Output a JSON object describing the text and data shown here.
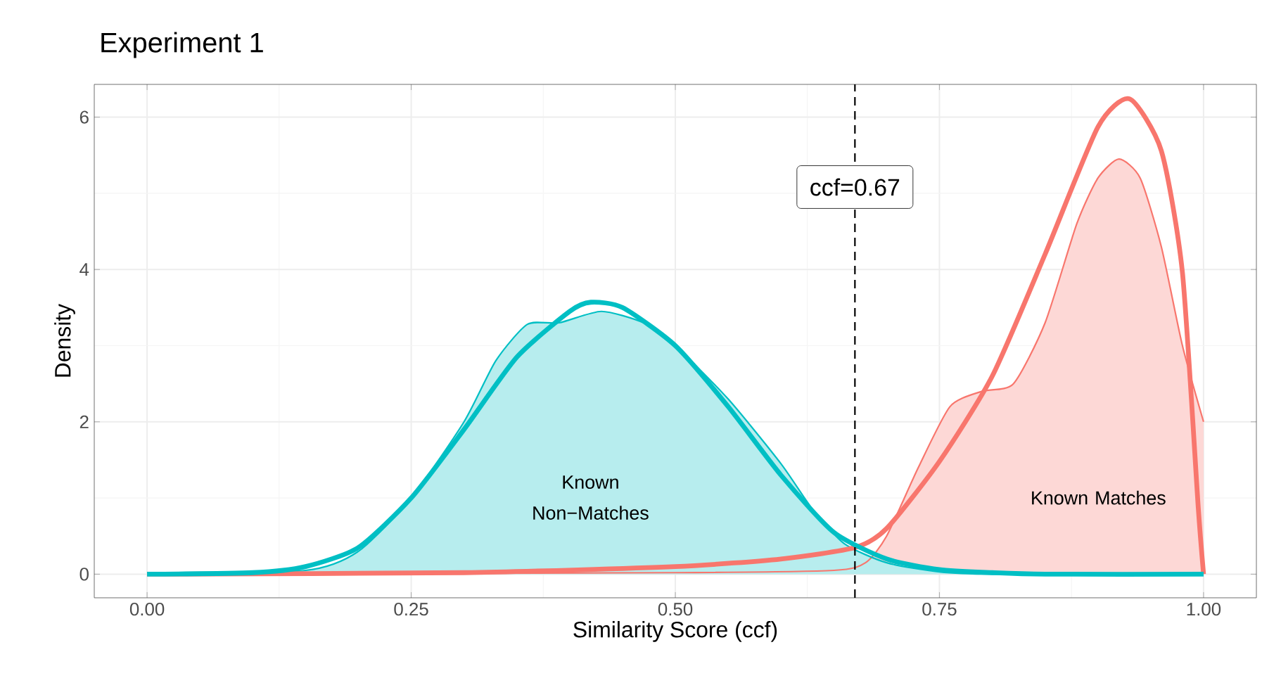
{
  "chart_data": {
    "type": "line",
    "title": "Experiment 1",
    "xlabel": "Similarity Score (ccf)",
    "ylabel": "Density",
    "xlim": [
      -0.05,
      1.05
    ],
    "ylim": [
      -0.31,
      6.43
    ],
    "xticks": [
      {
        "value": 0,
        "label": "0.00"
      },
      {
        "value": 0.25,
        "label": "0.25"
      },
      {
        "value": 0.5,
        "label": "0.50"
      },
      {
        "value": 0.75,
        "label": "0.75"
      },
      {
        "value": 1,
        "label": "1.00"
      }
    ],
    "yticks": [
      0,
      2,
      4,
      6
    ],
    "grid": true,
    "series": [
      {
        "type": "area",
        "color": "#f8766d",
        "x": [
          0,
          0.5,
          0.65,
          0.68,
          0.7,
          0.73,
          0.76,
          0.79,
          0.82,
          0.85,
          0.88,
          0.9,
          0.92,
          0.94,
          0.96,
          0.98,
          1.0
        ],
        "values": [
          0,
          0.02,
          0.05,
          0.15,
          0.5,
          1.4,
          2.2,
          2.4,
          2.5,
          3.3,
          4.6,
          5.2,
          5.45,
          5.2,
          4.3,
          3.0,
          2.0
        ]
      },
      {
        "type": "area",
        "color": "#00bfc4",
        "x": [
          0,
          0.15,
          0.2,
          0.25,
          0.3,
          0.33,
          0.36,
          0.39,
          0.43,
          0.47,
          0.5,
          0.55,
          0.6,
          0.63,
          0.66,
          0.7,
          0.75,
          0.8,
          1.0
        ],
        "values": [
          0,
          0.05,
          0.3,
          1.0,
          2.0,
          2.8,
          3.28,
          3.3,
          3.45,
          3.3,
          3.0,
          2.3,
          1.45,
          0.85,
          0.4,
          0.15,
          0.03,
          0,
          0
        ]
      },
      {
        "color": "#f8766d",
        "x": [
          0,
          0.3,
          0.5,
          0.6,
          0.67,
          0.7,
          0.75,
          0.8,
          0.85,
          0.9,
          0.93,
          0.96,
          0.98,
          0.995,
          1.0
        ],
        "values": [
          0,
          0.02,
          0.1,
          0.2,
          0.35,
          0.6,
          1.48,
          2.6,
          4.2,
          5.87,
          6.24,
          5.56,
          3.96,
          0.87,
          0
        ]
      },
      {
        "color": "#00bfc4",
        "x": [
          0,
          0.1,
          0.15,
          0.2,
          0.25,
          0.3,
          0.35,
          0.4,
          0.42,
          0.45,
          0.5,
          0.55,
          0.6,
          0.65,
          0.7,
          0.75,
          0.8,
          0.85,
          1.0
        ],
        "values": [
          0,
          0.02,
          0.1,
          0.35,
          1.0,
          1.9,
          2.85,
          3.45,
          3.57,
          3.5,
          3.0,
          2.2,
          1.3,
          0.55,
          0.2,
          0.06,
          0.02,
          0,
          0
        ]
      }
    ],
    "ref_lines": [
      {
        "axis": "x",
        "value": 0.67,
        "label": "ccf=0.67",
        "line_style": "dashed"
      }
    ],
    "annotations": [
      "Known Non−Matches",
      "Known Matches"
    ]
  }
}
